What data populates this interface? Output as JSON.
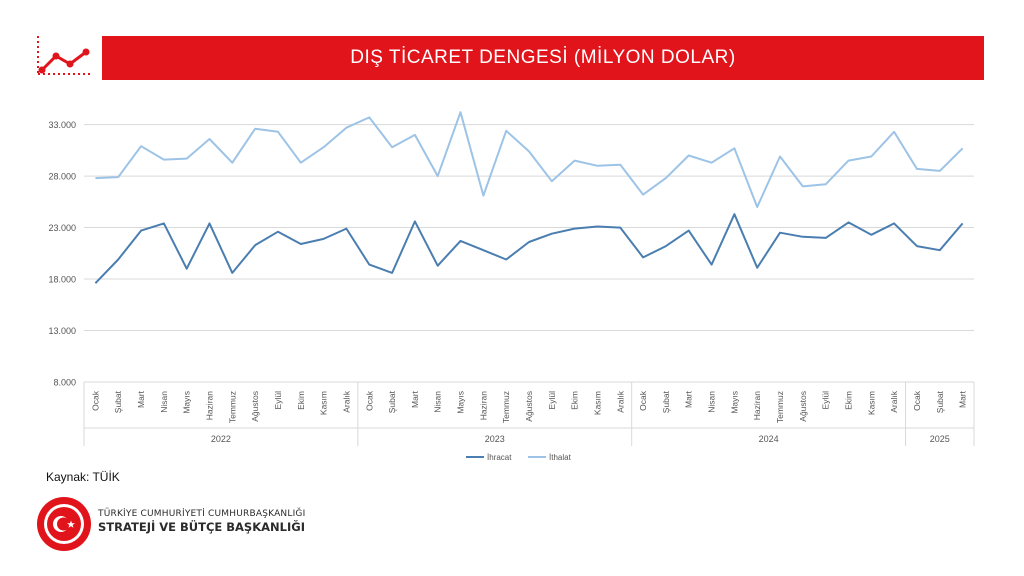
{
  "header": {
    "title": "DIŞ TİCARET DENGESİ (MİLYON DOLAR)",
    "banner_color": "#e1141b"
  },
  "branding": {
    "logo_icon": "trend-line-icon",
    "seal_icon": "presidency-seal-icon",
    "org_line1": "TÜRKİYE CUMHURİYETİ CUMHURBAŞKANLIĞI",
    "org_line2": "STRATEJİ VE BÜTÇE BAŞKANLIĞI"
  },
  "source": "Kaynak: TÜİK",
  "chart_data": {
    "type": "line",
    "title": "DIŞ TİCARET DENGESİ (MİLYON DOLAR)",
    "ylim": [
      8000,
      35000
    ],
    "yticks": [
      "8.000",
      "13.000",
      "18.000",
      "23.000",
      "28.000",
      "33.000"
    ],
    "grid": true,
    "legend_position": "bottom",
    "categories": [
      "Ocak",
      "Şubat",
      "Mart",
      "Nisan",
      "Mayıs",
      "Haziran",
      "Temmuz",
      "Ağustos",
      "Eylül",
      "Ekim",
      "Kasım",
      "Aralık",
      "Ocak",
      "Şubat",
      "Mart",
      "Nisan",
      "Mayıs",
      "Haziran",
      "Temmuz",
      "Ağustos",
      "Eylül",
      "Ekim",
      "Kasım",
      "Aralık",
      "Ocak",
      "Şubat",
      "Mart",
      "Nisan",
      "Mayıs",
      "Haziran",
      "Temmuz",
      "Ağustos",
      "Eylül",
      "Ekim",
      "Kasım",
      "Aralık",
      "Ocak",
      "Şubat",
      "Mart"
    ],
    "years": [
      {
        "label": "2022",
        "months": 12
      },
      {
        "label": "2023",
        "months": 12
      },
      {
        "label": "2024",
        "months": 12
      },
      {
        "label": "2025",
        "months": 3
      }
    ],
    "series": [
      {
        "name": "İhracat",
        "color": "#4a7eb0",
        "values": [
          17600,
          19900,
          22700,
          23400,
          19000,
          23400,
          18600,
          21300,
          22600,
          21400,
          21900,
          22900,
          19400,
          18600,
          23600,
          19300,
          21700,
          20800,
          19900,
          21600,
          22400,
          22900,
          23100,
          23000,
          20100,
          21200,
          22700,
          19400,
          24300,
          19100,
          22500,
          22100,
          22000,
          23500,
          22300,
          23400,
          21200,
          20800,
          23400
        ]
      },
      {
        "name": "İthalat",
        "color": "#9dc3e6",
        "values": [
          27800,
          27900,
          30900,
          29600,
          29700,
          31600,
          29300,
          32600,
          32300,
          29300,
          30800,
          32700,
          33700,
          30800,
          32000,
          28000,
          34200,
          26100,
          32400,
          30400,
          27500,
          29500,
          29000,
          29100,
          26200,
          27800,
          30000,
          29300,
          30700,
          25000,
          29900,
          27000,
          27200,
          29500,
          29900,
          32300,
          28700,
          28500,
          30700
        ]
      }
    ]
  }
}
